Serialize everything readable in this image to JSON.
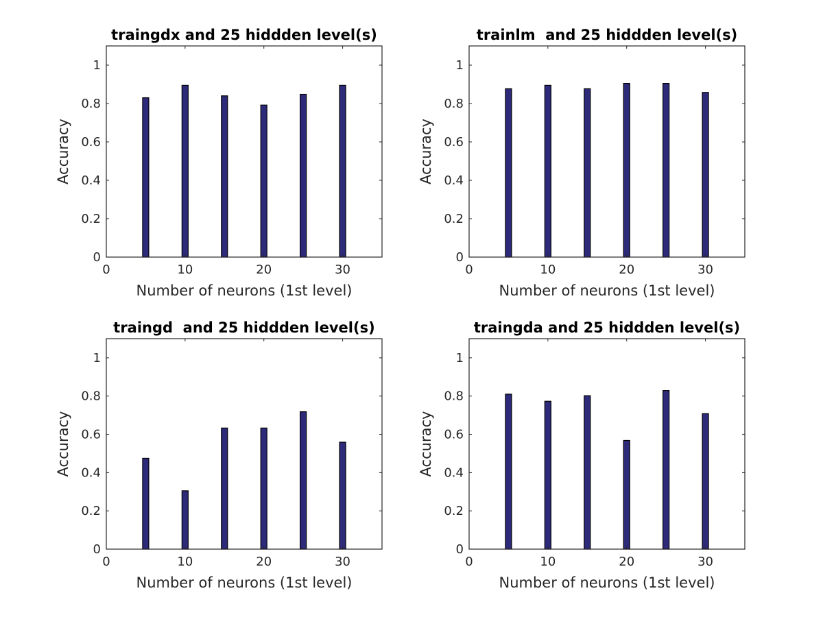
{
  "bar_color": "#2e2a7a",
  "axis_color": "#262626",
  "chart_data": [
    {
      "type": "bar",
      "title": "traingdx and 25 hiddden level(s)",
      "xlabel": "Number of neurons (1st level)",
      "ylabel": "Accuracy",
      "x": [
        5,
        10,
        15,
        20,
        25,
        30
      ],
      "values": [
        0.83,
        0.895,
        0.84,
        0.792,
        0.848,
        0.895
      ],
      "xlim": [
        0,
        35
      ],
      "ylim": [
        0,
        1.1
      ],
      "xticks": [
        0,
        10,
        20,
        30
      ],
      "yticks": [
        0,
        0.2,
        0.4,
        0.6,
        0.8,
        1
      ],
      "grid": false,
      "legend": "none"
    },
    {
      "type": "bar",
      "title": "trainlm  and 25 hiddden level(s)",
      "xlabel": "Number of neurons (1st level)",
      "ylabel": "Accuracy",
      "x": [
        5,
        10,
        15,
        20,
        25,
        30
      ],
      "values": [
        0.877,
        0.895,
        0.877,
        0.905,
        0.905,
        0.858
      ],
      "xlim": [
        0,
        35
      ],
      "ylim": [
        0,
        1.1
      ],
      "xticks": [
        0,
        10,
        20,
        30
      ],
      "yticks": [
        0,
        0.2,
        0.4,
        0.6,
        0.8,
        1
      ],
      "grid": false,
      "legend": "none"
    },
    {
      "type": "bar",
      "title": "traingd  and 25 hiddden level(s)",
      "xlabel": "Number of neurons (1st level)",
      "ylabel": "Accuracy",
      "x": [
        5,
        10,
        15,
        20,
        25,
        30
      ],
      "values": [
        0.475,
        0.305,
        0.633,
        0.633,
        0.718,
        0.559
      ],
      "xlim": [
        0,
        35
      ],
      "ylim": [
        0,
        1.1
      ],
      "xticks": [
        0,
        10,
        20,
        30
      ],
      "yticks": [
        0,
        0.2,
        0.4,
        0.6,
        0.8,
        1
      ],
      "grid": false,
      "legend": "none"
    },
    {
      "type": "bar",
      "title": "traingda and 25 hiddden level(s)",
      "xlabel": "Number of neurons (1st level)",
      "ylabel": "Accuracy",
      "x": [
        5,
        10,
        15,
        20,
        25,
        30
      ],
      "values": [
        0.81,
        0.773,
        0.802,
        0.568,
        0.829,
        0.708
      ],
      "xlim": [
        0,
        35
      ],
      "ylim": [
        0,
        1.1
      ],
      "xticks": [
        0,
        10,
        20,
        30
      ],
      "yticks": [
        0,
        0.2,
        0.4,
        0.6,
        0.8,
        1
      ],
      "grid": false,
      "legend": "none"
    }
  ]
}
